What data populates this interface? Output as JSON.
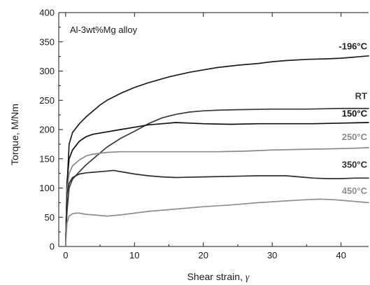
{
  "chart_data": {
    "type": "line",
    "annotation": "Al-3wt%Mg alloy",
    "xlabel": "Shear strain, ",
    "xlabel_symbol": "γ",
    "ylabel": "Torque, M/Nm",
    "xlim": [
      -1,
      44
    ],
    "ylim": [
      0,
      400
    ],
    "xticks": [
      0,
      10,
      20,
      30,
      40
    ],
    "yticks": [
      0,
      50,
      100,
      150,
      200,
      250,
      300,
      350,
      400
    ],
    "grid": false,
    "series": [
      {
        "name": "-196°C",
        "color": "#1e1e1e",
        "x": [
          0,
          0.2,
          0.5,
          1,
          2,
          3,
          4,
          5,
          6,
          8,
          10,
          12,
          15,
          18,
          20,
          22,
          25,
          28,
          30,
          32,
          35,
          38,
          40,
          42,
          44
        ],
        "y": [
          0,
          100,
          175,
          195,
          210,
          222,
          232,
          242,
          250,
          262,
          272,
          280,
          290,
          298,
          302,
          306,
          310,
          313,
          316,
          318,
          320,
          321,
          322,
          324,
          326
        ]
      },
      {
        "name": "RT",
        "color": "#3a3a3a",
        "x": [
          0,
          0.2,
          0.5,
          1,
          2,
          3,
          4,
          5,
          6,
          8,
          10,
          12,
          14,
          16,
          18,
          20,
          22,
          25,
          30,
          35,
          40,
          44
        ],
        "y": [
          0,
          60,
          100,
          115,
          128,
          140,
          150,
          160,
          170,
          185,
          197,
          210,
          220,
          226,
          230,
          232,
          233,
          234,
          235,
          235,
          236,
          236
        ]
      },
      {
        "name": "150°C",
        "color": "#101010",
        "x": [
          0,
          0.2,
          0.5,
          1,
          2,
          3,
          4,
          6,
          8,
          10,
          12,
          14,
          16,
          18,
          20,
          24,
          28,
          32,
          36,
          40,
          44
        ],
        "y": [
          0,
          110,
          150,
          165,
          180,
          188,
          192,
          196,
          200,
          204,
          208,
          210,
          212,
          211,
          210,
          209,
          210,
          210,
          210,
          211,
          212
        ]
      },
      {
        "name": "250°C",
        "color": "#8a8a8a",
        "x": [
          0,
          0.2,
          0.5,
          1,
          2,
          3,
          4,
          6,
          8,
          10,
          14,
          18,
          22,
          26,
          30,
          34,
          38,
          42,
          44
        ],
        "y": [
          0,
          95,
          125,
          138,
          148,
          155,
          158,
          161,
          162,
          162,
          162,
          162,
          162,
          163,
          165,
          166,
          167,
          168,
          169
        ]
      },
      {
        "name": "350°C",
        "color": "#2e2e2e",
        "x": [
          0,
          0.2,
          0.5,
          1,
          2,
          3,
          4,
          6,
          7,
          8,
          10,
          12,
          14,
          16,
          20,
          24,
          28,
          30,
          32,
          34,
          36,
          38,
          40,
          42,
          44
        ],
        "y": [
          0,
          90,
          108,
          118,
          124,
          126,
          127,
          129,
          130,
          128,
          124,
          121,
          119,
          118,
          119,
          120,
          121,
          121,
          121,
          119,
          117,
          116,
          116,
          117,
          117
        ]
      },
      {
        "name": "450°C",
        "color": "#8f8f8f",
        "x": [
          0,
          0.2,
          0.5,
          1,
          1.5,
          2,
          3,
          4,
          6,
          8,
          10,
          12,
          15,
          18,
          20,
          24,
          28,
          32,
          35,
          37,
          39,
          41,
          43,
          44
        ],
        "y": [
          0,
          40,
          52,
          56,
          57,
          57,
          55,
          54,
          52,
          54,
          57,
          60,
          63,
          66,
          68,
          71,
          75,
          78,
          80,
          81,
          80,
          78,
          76,
          75
        ]
      }
    ]
  }
}
